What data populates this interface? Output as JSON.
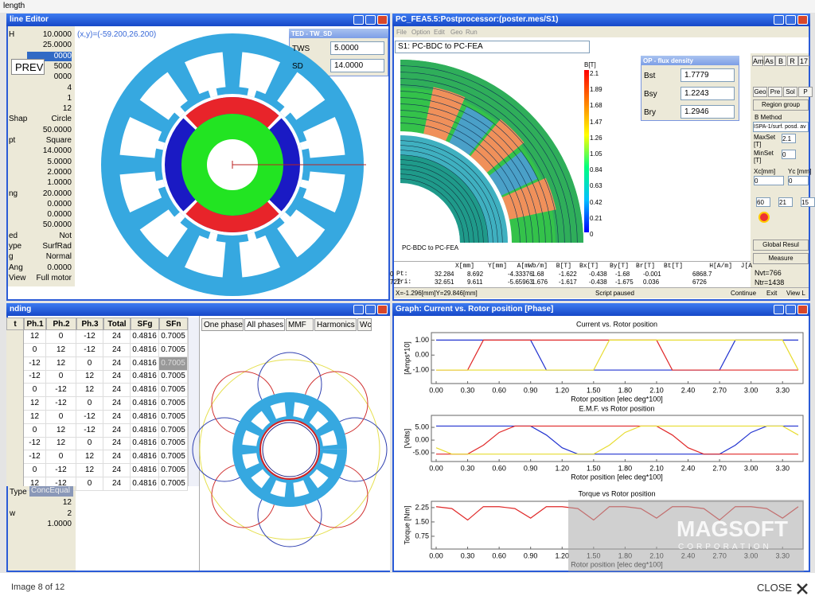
{
  "header": {
    "title": "length"
  },
  "editor": {
    "title": "line Editor",
    "coords": "(x,y)=(-59.200,26.200)",
    "prev": "PREV",
    "params": [
      {
        "label": "H",
        "value": "10.0000"
      },
      {
        "value": "25.0000"
      },
      {
        "value": "0000"
      },
      {
        "value": "5000"
      },
      {
        "value": "0000"
      },
      {
        "value": "4"
      },
      {
        "value": "1"
      },
      {
        "value": "12"
      },
      {
        "label": "Shap",
        "value": "Circle"
      },
      {
        "value": "50.0000"
      },
      {
        "label": "pt",
        "value": "Square"
      },
      {
        "value": "14.0000"
      },
      {
        "value": "5.0000"
      },
      {
        "value": "2.0000"
      },
      {
        "value": "1.0000"
      },
      {
        "label": "ng",
        "value": "20.0000"
      },
      {
        "value": "0.0000"
      },
      {
        "value": "0.0000"
      },
      {
        "value": "50.0000"
      },
      {
        "label": "ed",
        "value": "Not"
      },
      {
        "label": "ype",
        "value": "SurfRad"
      },
      {
        "label": "g",
        "value": "Normal"
      },
      {
        "label": "Ang",
        "value": "0.0000"
      },
      {
        "label": "View",
        "value": "Full motor"
      }
    ]
  },
  "ted_dialog": {
    "title": "TED - TW_SD",
    "fields": [
      {
        "label": "TWS",
        "value": "5.0000"
      },
      {
        "label": "SD",
        "value": "14.0000"
      }
    ]
  },
  "postprocessor": {
    "title": "PC_FEA5.5:Postprocessor:(poster.mes/S1)",
    "menu": [
      "File",
      "Option",
      "Edit",
      "Geo",
      "Run"
    ],
    "dropdown": "S1: PC-BDC to PC-FEA",
    "caption": "PC-BDC to PC-FEA",
    "colorbar": {
      "title": "B[T]",
      "labels": [
        2.1,
        1.89,
        1.68,
        1.47,
        1.26,
        1.05,
        0.84,
        0.63,
        0.42,
        0.21,
        0
      ]
    },
    "flux_dialog": {
      "title": "OP - flux density",
      "fields": [
        {
          "label": "Bst",
          "value": "1.7779"
        },
        {
          "label": "Bsy",
          "value": "1.2243"
        },
        {
          "label": "Bry",
          "value": "1.2946"
        }
      ]
    },
    "side_panel": {
      "tabs": [
        "Am",
        "As",
        "B",
        "R",
        "17"
      ],
      "subtabs": [
        "Geo",
        "Pre",
        "Sol",
        "P"
      ],
      "region_group": "Region group",
      "b_method": "B Method",
      "method_value": "ISPA-1/surf. posd. av",
      "maxset": "MaxSet [T]",
      "maxset_value": "2.1",
      "minset": "MinSet [T]",
      "minset_value": "0",
      "xc": "Xc[mm]",
      "yc": "Yc [mm]",
      "xc_value": "0",
      "yc_value": "0",
      "steps": [
        "60",
        "21",
        "15"
      ],
      "global": "Global Resul",
      "measure": "Measure",
      "nvt": "Nvt=766",
      "ntr": "Ntr=1438"
    },
    "table": {
      "header": [
        "X[mm]",
        "Y[mm]",
        "A[mWb/m]",
        "B[T]",
        "Bx[T]",
        "By[T]",
        "Br[T]",
        "Bt[T]",
        "H[A/m]",
        "J[A"
      ],
      "rows": [
        [
          "Pt:",
          "0",
          "32.284",
          "8.692",
          "-4.33376",
          "1.68",
          "-1.622",
          "-0.438",
          "-1.68",
          "-0.001",
          "6868.7"
        ],
        [
          "Tri:",
          "722",
          "32.651",
          "9.611",
          "-5.65963",
          "1.676",
          "-1.617",
          "-0.438",
          "-1.675",
          "0.036",
          "6726"
        ]
      ]
    },
    "status": {
      "position": "X=-1.296[mm]Y=29.846[mm]",
      "state": "Script paused",
      "buttons": [
        "Continue",
        "Exit",
        "View L"
      ]
    }
  },
  "winding": {
    "title": "nding",
    "columns": [
      "t",
      "Ph.1",
      "Ph.2",
      "Ph.3",
      "Total",
      "SFg",
      "SFn"
    ],
    "rows": [
      [
        12,
        0,
        -12,
        24,
        0.4816,
        0.7005
      ],
      [
        0,
        12,
        -12,
        24,
        0.4816,
        0.7005
      ],
      [
        -12,
        12,
        0,
        24,
        0.4816,
        0.7005
      ],
      [
        -12,
        0,
        12,
        24,
        0.4816,
        0.7005
      ],
      [
        0,
        -12,
        12,
        24,
        0.4816,
        0.7005
      ],
      [
        12,
        -12,
        0,
        24,
        0.4816,
        0.7005
      ],
      [
        12,
        0,
        -12,
        24,
        0.4816,
        0.7005
      ],
      [
        0,
        12,
        -12,
        24,
        0.4816,
        0.7005
      ],
      [
        -12,
        12,
        0,
        24,
        0.4816,
        0.7005
      ],
      [
        -12,
        0,
        12,
        24,
        0.4816,
        0.7005
      ],
      [
        0,
        -12,
        12,
        24,
        0.4816,
        0.7005
      ],
      [
        12,
        -12,
        0,
        24,
        0.4816,
        0.7005
      ]
    ],
    "type_label": "Type",
    "type_value": "ConcEqual",
    "field1": "12",
    "field2_label": "w",
    "field2": "2",
    "field3": "1.0000",
    "tabs": [
      "One phase",
      "All phases",
      "MMF",
      "Harmonics",
      "Wc"
    ]
  },
  "graph": {
    "title": "Graph:  Current vs. Rotor position [Phase]",
    "plots": [
      {
        "type": "line",
        "title": "Current vs. Rotor position",
        "ylabel": "[Amps*10]",
        "xlabel": "Rotor position [elec deg*100]",
        "x": [
          0,
          0.15,
          0.3,
          0.45,
          0.6,
          0.75,
          0.9,
          1.05,
          1.2,
          1.35,
          1.5,
          1.65,
          1.8,
          1.95,
          2.1,
          2.25,
          2.4,
          2.55,
          2.7,
          2.85,
          3,
          3.15,
          3.3,
          3.45
        ],
        "xlim": [
          0,
          3.45
        ],
        "ylim": [
          -1.9,
          1.5
        ],
        "xticks": [
          {
            "value": 0,
            "label": "0.00"
          },
          {
            "value": 0.3,
            "label": "0.30"
          },
          {
            "value": 0.6,
            "label": "0.60"
          },
          {
            "value": 0.9,
            "label": "0.90"
          },
          {
            "value": 1.2,
            "label": "1.20"
          },
          {
            "value": 1.5,
            "label": "1.50"
          },
          {
            "value": 1.8,
            "label": "1.80"
          },
          {
            "value": 2.1,
            "label": "2.10"
          },
          {
            "value": 2.4,
            "label": "2.40"
          },
          {
            "value": 2.7,
            "label": "2.70"
          },
          {
            "value": 3,
            "label": "3.00"
          },
          {
            "value": 3.3,
            "label": "3.30"
          }
        ],
        "yticks": [
          {
            "value": 1,
            "label": "1.00"
          },
          {
            "value": 0,
            "label": "0.00"
          },
          {
            "value": -1,
            "label": "-1.00"
          }
        ],
        "series": [
          {
            "color": "#2233d0",
            "values": [
              1,
              1,
              1,
              1,
              1,
              1,
              1,
              -1,
              -1,
              -1,
              -1,
              -1,
              -1,
              -1,
              -1,
              -1,
              -1,
              -1,
              -1,
              1,
              1,
              1,
              1,
              1
            ]
          },
          {
            "color": "#e02828",
            "values": [
              -1,
              -1,
              -1,
              1,
              1,
              1,
              1,
              1,
              1,
              1,
              1,
              1,
              1,
              1,
              1,
              -1,
              -1,
              -1,
              -1,
              -1,
              -1,
              -1,
              -1,
              -1
            ]
          },
          {
            "color": "#e8dc30",
            "values": [
              -1,
              -1,
              -1,
              -1,
              -1,
              -1,
              -1,
              -1,
              -1,
              -1,
              -1,
              1,
              1,
              1,
              1,
              1,
              1,
              1,
              1,
              1,
              1,
              1,
              1,
              -1
            ]
          }
        ]
      },
      {
        "type": "line",
        "title": "E.M.F. vs Rotor position",
        "ylabel": "[Volts]",
        "xlabel": "Rotor position [elec deg*100]",
        "x": [
          0,
          0.15,
          0.3,
          0.45,
          0.6,
          0.75,
          0.9,
          1.05,
          1.2,
          1.35,
          1.5,
          1.65,
          1.8,
          1.95,
          2.1,
          2.25,
          2.4,
          2.55,
          2.7,
          2.85,
          3,
          3.15,
          3.3,
          3.45
        ],
        "xlim": [
          0,
          3.45
        ],
        "ylim": [
          -8.4,
          9.7
        ],
        "xticks": [
          {
            "value": 0,
            "label": "0.00"
          },
          {
            "value": 0.3,
            "label": "0.30"
          },
          {
            "value": 0.6,
            "label": "0.60"
          },
          {
            "value": 0.9,
            "label": "0.90"
          },
          {
            "value": 1.2,
            "label": "1.20"
          },
          {
            "value": 1.5,
            "label": "1.50"
          },
          {
            "value": 1.8,
            "label": "1.80"
          },
          {
            "value": 2.1,
            "label": "2.10"
          },
          {
            "value": 2.4,
            "label": "2.40"
          },
          {
            "value": 2.7,
            "label": "2.70"
          },
          {
            "value": 3,
            "label": "3.00"
          },
          {
            "value": 3.3,
            "label": "3.30"
          }
        ],
        "yticks": [
          {
            "value": 5,
            "label": "5.00"
          },
          {
            "value": 0,
            "label": "0.00"
          },
          {
            "value": -5,
            "label": "-5.00"
          }
        ],
        "series": [
          {
            "color": "#2233d0",
            "values": [
              5.5,
              5.5,
              5.5,
              5.5,
              5.5,
              5.5,
              5.5,
              2,
              -3,
              -5.5,
              -5.5,
              -5.5,
              -5.5,
              -5.5,
              -5.5,
              -5.5,
              -5.5,
              -5.5,
              -5.5,
              -2,
              3,
              5.5,
              5.5,
              5.5
            ]
          },
          {
            "color": "#e02828",
            "values": [
              -5.5,
              -5.5,
              -5.5,
              -2,
              3,
              5.5,
              5.5,
              5.5,
              5.5,
              5.5,
              5.5,
              5.5,
              5.5,
              5.5,
              5.5,
              2,
              -3,
              -5.5,
              -5.5,
              -5.5,
              -5.5,
              -5.5,
              -5.5,
              -5.5
            ]
          },
          {
            "color": "#e8dc30",
            "values": [
              -3,
              -5.5,
              -5.5,
              -5.5,
              -5.5,
              -5.5,
              -5.5,
              -5.5,
              -5.5,
              -5.5,
              -5.5,
              -2,
              3,
              5.5,
              5.5,
              5.5,
              5.5,
              5.5,
              5.5,
              5.5,
              5.5,
              5.5,
              5.5,
              2
            ]
          }
        ]
      },
      {
        "type": "line",
        "title": "Torque vs Rotor position",
        "ylabel": "Torque [Nm]",
        "xlabel": "Rotor position [elec deg*100]",
        "x": [
          0,
          0.15,
          0.3,
          0.45,
          0.6,
          0.75,
          0.9,
          1.05,
          1.2,
          1.35,
          1.5,
          1.65,
          1.8,
          1.95,
          2.1,
          2.25,
          2.4,
          2.55,
          2.7,
          2.85,
          3,
          3.15,
          3.3,
          3.45
        ],
        "xlim": [
          0,
          3.45
        ],
        "ylim": [
          0.08,
          2.58
        ],
        "xticks": [
          {
            "value": 0,
            "label": "0.00"
          },
          {
            "value": 0.3,
            "label": "0.30"
          },
          {
            "value": 0.6,
            "label": "0.60"
          },
          {
            "value": 0.9,
            "label": "0.90"
          },
          {
            "value": 1.2,
            "label": "1.20"
          },
          {
            "value": 1.5,
            "label": "1.50"
          },
          {
            "value": 1.8,
            "label": "1.80"
          },
          {
            "value": 2.1,
            "label": "2.10"
          },
          {
            "value": 2.4,
            "label": "2.40"
          },
          {
            "value": 2.7,
            "label": "2.70"
          },
          {
            "value": 3,
            "label": "3.00"
          },
          {
            "value": 3.3,
            "label": "3.30"
          }
        ],
        "yticks": [
          {
            "value": 2.25,
            "label": "2.25"
          },
          {
            "value": 1.5,
            "label": "1.50"
          },
          {
            "value": 0.75,
            "label": "0.75"
          }
        ],
        "series": [
          {
            "color": "#e02828",
            "values": [
              2.3,
              2.2,
              1.6,
              2.3,
              2.3,
              2.2,
              1.7,
              2.3,
              2.3,
              2.2,
              1.6,
              2.3,
              2.3,
              2.2,
              1.7,
              2.3,
              2.3,
              2.2,
              1.6,
              2.3,
              2.3,
              2.2,
              1.7,
              2.3
            ]
          }
        ]
      }
    ]
  },
  "watermark": {
    "name": "MAGSOFT",
    "sub": "CORPORATION"
  },
  "footer": {
    "counter": "Image 8 of 12",
    "close": "CLOSE"
  }
}
